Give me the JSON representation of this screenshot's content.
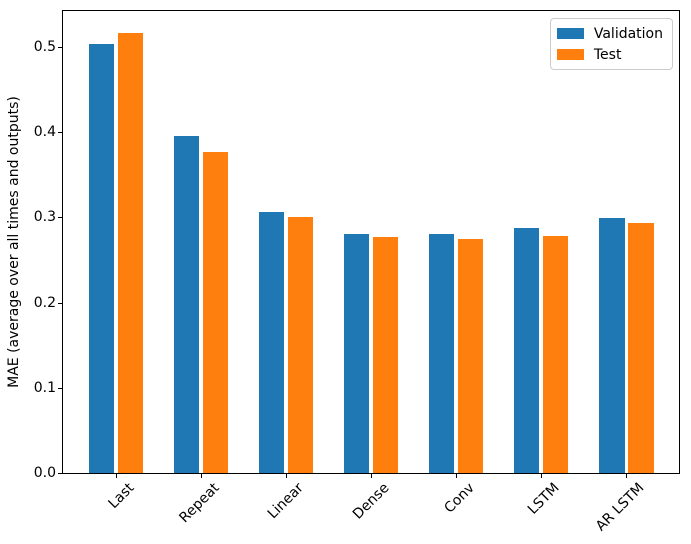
{
  "chart_data": {
    "type": "bar",
    "title": "",
    "xlabel": "",
    "ylabel": "MAE (average over all times and outputs)",
    "categories": [
      "Last",
      "Repeat",
      "Linear",
      "Dense",
      "Conv",
      "LSTM",
      "AR LSTM"
    ],
    "series": [
      {
        "name": "Validation",
        "color": "#1f77b4",
        "values": [
          0.503,
          0.396,
          0.306,
          0.281,
          0.28,
          0.287,
          0.299
        ]
      },
      {
        "name": "Test",
        "color": "#ff7f0e",
        "values": [
          0.516,
          0.377,
          0.3,
          0.277,
          0.275,
          0.278,
          0.293
        ]
      }
    ],
    "ylim": [
      0,
      0.542
    ],
    "xlim": [
      -0.62,
      6.62
    ],
    "yticks": [
      0,
      0.1,
      0.2,
      0.3,
      0.4,
      0.5
    ],
    "ytick_labels": [
      "0.0",
      "0.1",
      "0.2",
      "0.3",
      "0.4",
      "0.5"
    ],
    "xtick_rotation": 45,
    "bar_width": 0.3,
    "bar_offset": 0.17,
    "grid": false,
    "legend_position": "upper right",
    "axis_color": "#000000",
    "legend_border_color": "#cccccc",
    "background": "#ffffff"
  }
}
